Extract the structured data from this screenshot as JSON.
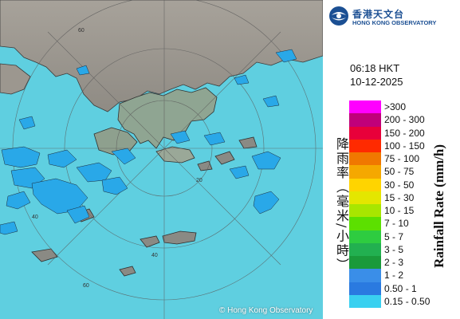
{
  "logo": {
    "name_zh": "香港天文台",
    "name_en": "HONG KONG OBSERVATORY",
    "brand_color": "#1b4f93"
  },
  "time": "06:18 HKT",
  "date": "10-12-2025",
  "map": {
    "sea_color": "#5fcfe0",
    "rain_color": "#29a8e8",
    "range_ring_labels": [
      "60",
      "60",
      "40",
      "40",
      "20"
    ],
    "copyright": "© Hong Kong Observatory"
  },
  "legend": {
    "title_en": "Rainfall Rate (mm/h)",
    "title_zh": "降雨率（毫米/小時）",
    "items": [
      {
        "label": ">300",
        "color": "#ff00ff"
      },
      {
        "label": "200 - 300",
        "color": "#c0007a"
      },
      {
        "label": "150 - 200",
        "color": "#e8003a"
      },
      {
        "label": "100 - 150",
        "color": "#ff2a00"
      },
      {
        "label": "75 - 100",
        "color": "#f07800"
      },
      {
        "label": "50 - 75",
        "color": "#f5a800"
      },
      {
        "label": "30 - 50",
        "color": "#ffd400"
      },
      {
        "label": "15 - 30",
        "color": "#e4e600"
      },
      {
        "label": "10 - 15",
        "color": "#a8e600"
      },
      {
        "label": "7 - 10",
        "color": "#5ce000"
      },
      {
        "label": "5 - 7",
        "color": "#2ecc40"
      },
      {
        "label": "3 - 5",
        "color": "#22b050"
      },
      {
        "label": "2 - 3",
        "color": "#1a9a3a"
      },
      {
        "label": "1 - 2",
        "color": "#3a8ee8"
      },
      {
        "label": "0.50 - 1",
        "color": "#2a7ae0"
      },
      {
        "label": "0.15 - 0.50",
        "color": "#39d0f0"
      }
    ]
  }
}
